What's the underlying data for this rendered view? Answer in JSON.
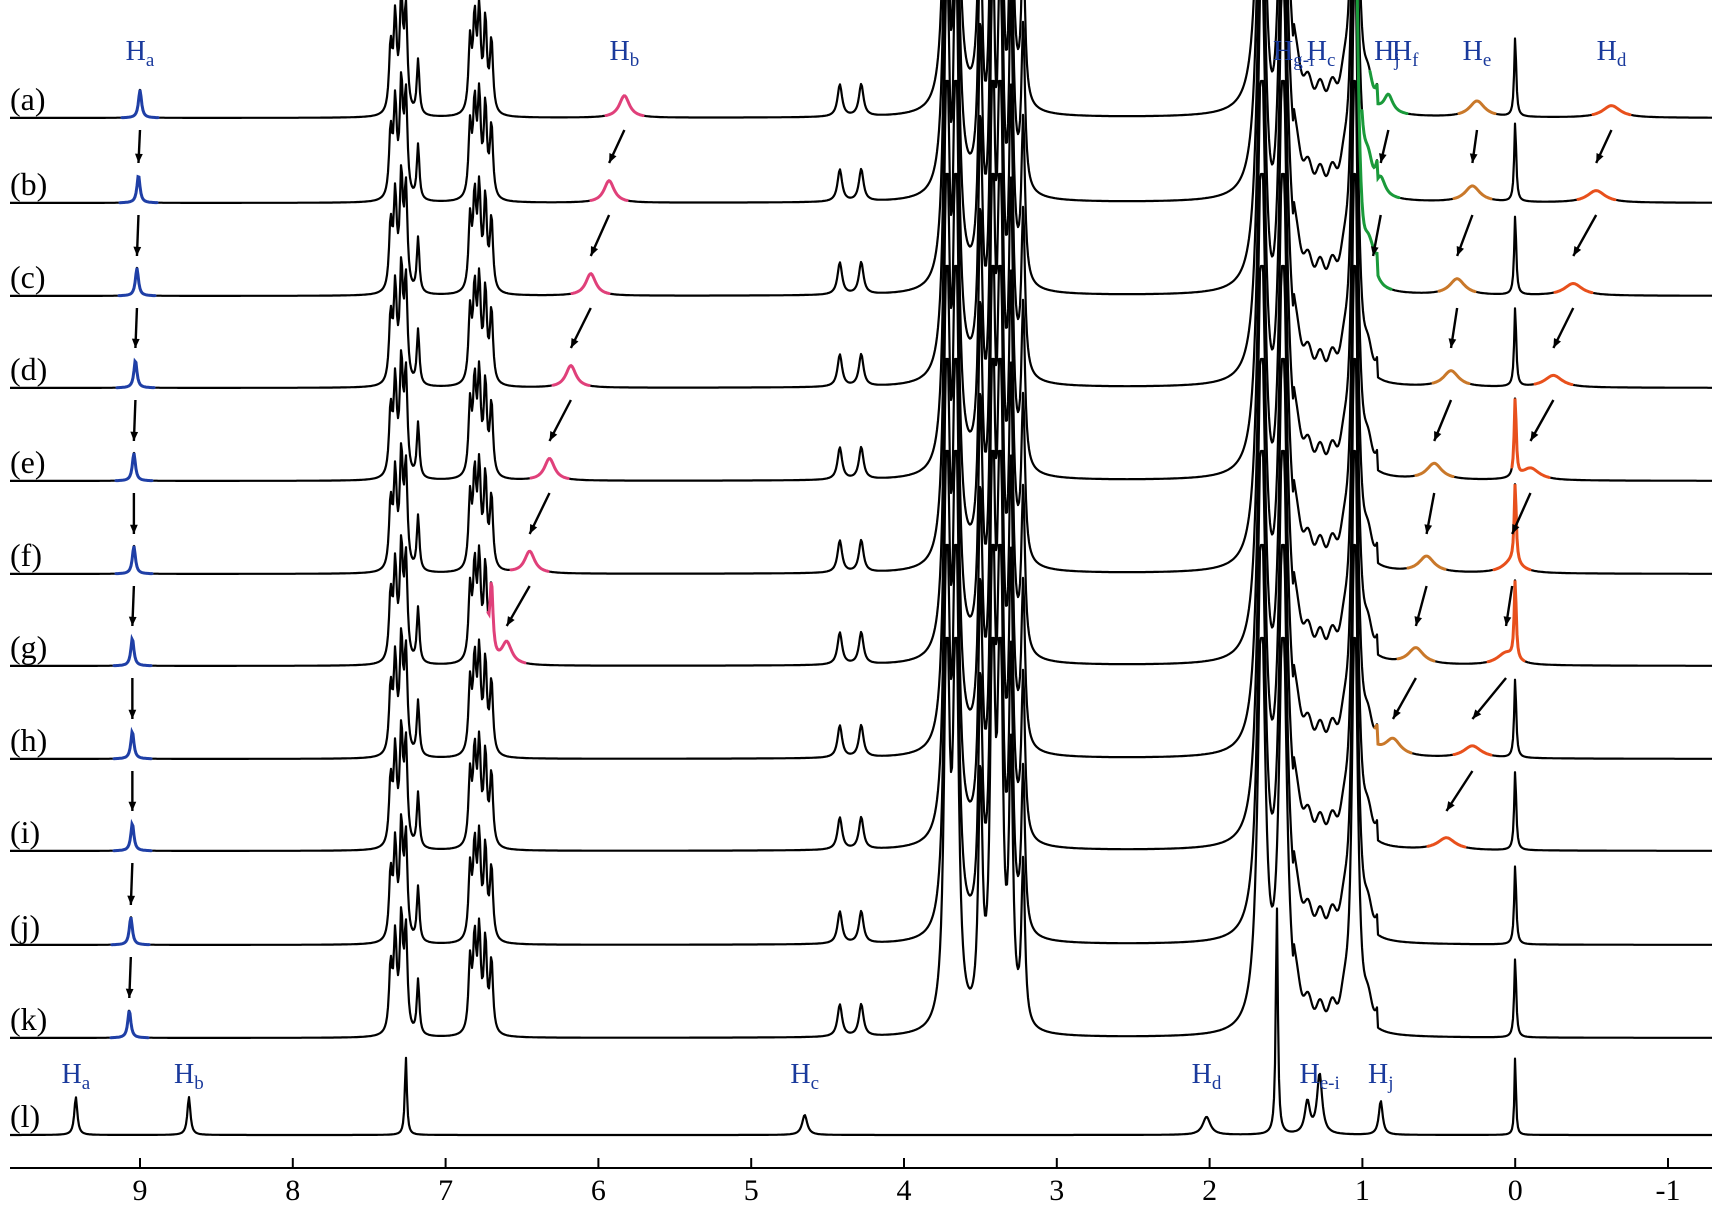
{
  "chart_data": {
    "type": "line",
    "title": "",
    "xlabel": "",
    "ylabel": "",
    "x_reversed": true,
    "xlim": [
      9.85,
      -1.15
    ],
    "ticks": [
      9,
      8,
      7,
      6,
      5,
      4,
      3,
      2,
      1,
      0,
      -1
    ],
    "tick_labels": [
      "9",
      "8",
      "7",
      "6",
      "5",
      "4",
      "3",
      "2",
      "1",
      "0",
      "-1"
    ],
    "grid": false,
    "legend": "none",
    "series": [
      {
        "label": "(a)",
        "peaks": {
          "Ha": 9.0,
          "Hb": 5.83,
          "Hf": 0.83,
          "He": 0.25,
          "Hd": -0.63
        }
      },
      {
        "label": "(b)",
        "peaks": {
          "Ha": 9.01,
          "Hb": 5.93,
          "Hf": 0.88,
          "He": 0.28,
          "Hd": -0.53
        }
      },
      {
        "label": "(c)",
        "peaks": {
          "Ha": 9.02,
          "Hb": 6.05,
          "Hf": 0.93,
          "He": 0.38,
          "Hd": -0.38
        }
      },
      {
        "label": "(d)",
        "peaks": {
          "Ha": 9.03,
          "Hb": 6.18,
          "He": 0.42,
          "Hd": -0.25
        }
      },
      {
        "label": "(e)",
        "peaks": {
          "Ha": 9.04,
          "Hb": 6.32,
          "He": 0.53,
          "Hd": -0.1
        }
      },
      {
        "label": "(f)",
        "peaks": {
          "Ha": 9.04,
          "Hb": 6.45,
          "He": 0.58,
          "Hd": 0.02
        }
      },
      {
        "label": "(g)",
        "peaks": {
          "Ha": 9.05,
          "Hb": 6.6,
          "He": 0.65,
          "Hd": 0.06
        }
      },
      {
        "label": "(h)",
        "peaks": {
          "Ha": 9.05,
          "He": 0.8,
          "Hd": 0.28
        }
      },
      {
        "label": "(i)",
        "peaks": {
          "Ha": 9.05,
          "Hd": 0.45
        }
      },
      {
        "label": "(j)",
        "peaks": {
          "Ha": 9.06
        }
      },
      {
        "label": "(k)",
        "peaks": {
          "Ha": 9.07
        }
      },
      {
        "label": "(l)",
        "peaks": {
          "Ha": 9.42,
          "Hb": 8.68,
          "Hc": 4.65,
          "Hd": 2.02,
          "He-i": 1.28,
          "Hj": 0.88
        }
      }
    ],
    "colors": {
      "trace": "#000000",
      "Ha": "#1f3fa6",
      "Hb": "#e0407a",
      "Hf": "#1a9a3a",
      "He": "#c9782a",
      "Hd": "#e8501c",
      "label": "#1a3a9c"
    },
    "annotations": [
      {
        "text": "Ha",
        "main": "H",
        "sub": "a",
        "x": 9.0,
        "row": "(a)"
      },
      {
        "text": "Hb",
        "main": "H",
        "sub": "b",
        "x": 5.83,
        "row": "(a)"
      },
      {
        "text": "Hg-i",
        "main": "H",
        "sub": "g-i",
        "x": 1.45,
        "row": "(a)"
      },
      {
        "text": "Hc",
        "main": "H",
        "sub": "c",
        "x": 1.27,
        "row": "(a)"
      },
      {
        "text": "Hj",
        "main": "H",
        "sub": "j",
        "x": 0.84,
        "row": "(a)"
      },
      {
        "text": "Hf",
        "main": "H",
        "sub": "f",
        "x": 0.72,
        "row": "(a)"
      },
      {
        "text": "He",
        "main": "H",
        "sub": "e",
        "x": 0.25,
        "row": "(a)"
      },
      {
        "text": "Hd",
        "main": "H",
        "sub": "d",
        "x": -0.63,
        "row": "(a)"
      },
      {
        "text": "Ha",
        "main": "H",
        "sub": "a",
        "x": 9.42,
        "row": "(l)"
      },
      {
        "text": "Hb",
        "main": "H",
        "sub": "b",
        "x": 8.68,
        "row": "(l)"
      },
      {
        "text": "Hc",
        "main": "H",
        "sub": "c",
        "x": 4.65,
        "row": "(l)"
      },
      {
        "text": "Hd",
        "main": "H",
        "sub": "d",
        "x": 2.02,
        "row": "(l)"
      },
      {
        "text": "He-i",
        "main": "H",
        "sub": "e-i",
        "x": 1.28,
        "row": "(l)"
      },
      {
        "text": "Hj",
        "main": "H",
        "sub": "j",
        "x": 0.88,
        "row": "(l)"
      }
    ]
  }
}
